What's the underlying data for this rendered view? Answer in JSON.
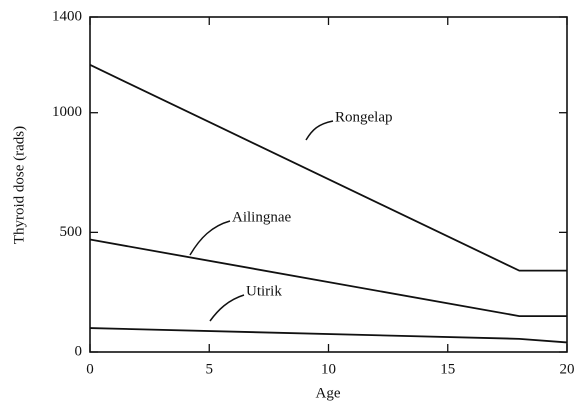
{
  "chart_data": {
    "type": "line",
    "xlabel": "Age",
    "ylabel": "Thyroid dose (rads)",
    "x": [
      0,
      18,
      20
    ],
    "series": [
      {
        "name": "Rongelap",
        "color": "#111111",
        "values": [
          1200,
          340,
          340
        ]
      },
      {
        "name": "Ailingnae",
        "color": "#111111",
        "values": [
          470,
          150,
          150
        ]
      },
      {
        "name": "Utirik",
        "color": "#111111",
        "values": [
          100,
          55,
          40
        ]
      }
    ],
    "xlim": [
      0,
      20
    ],
    "xticks": [
      0,
      5,
      10,
      15,
      20
    ],
    "ylim": [
      0,
      1400
    ],
    "yticks": [
      0,
      500,
      1000,
      1400
    ],
    "grid": false
  }
}
